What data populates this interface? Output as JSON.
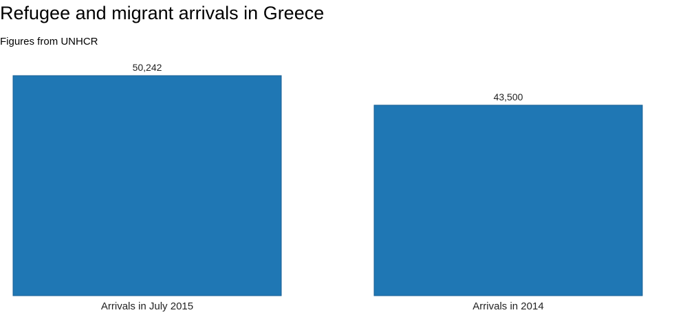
{
  "chart_data": {
    "type": "bar",
    "title": "Refugee and migrant arrivals in Greece",
    "subtitle": "Figures from UNHCR",
    "categories": [
      "Arrivals in July 2015",
      "Arrivals in 2014"
    ],
    "values": [
      50242,
      43500
    ],
    "value_labels": [
      "50,242",
      "43,500"
    ],
    "xlabel": "",
    "ylabel": "",
    "ylim": [
      0,
      50242
    ],
    "grid": false,
    "legend": "none",
    "bar_color": "#1f77b4"
  }
}
